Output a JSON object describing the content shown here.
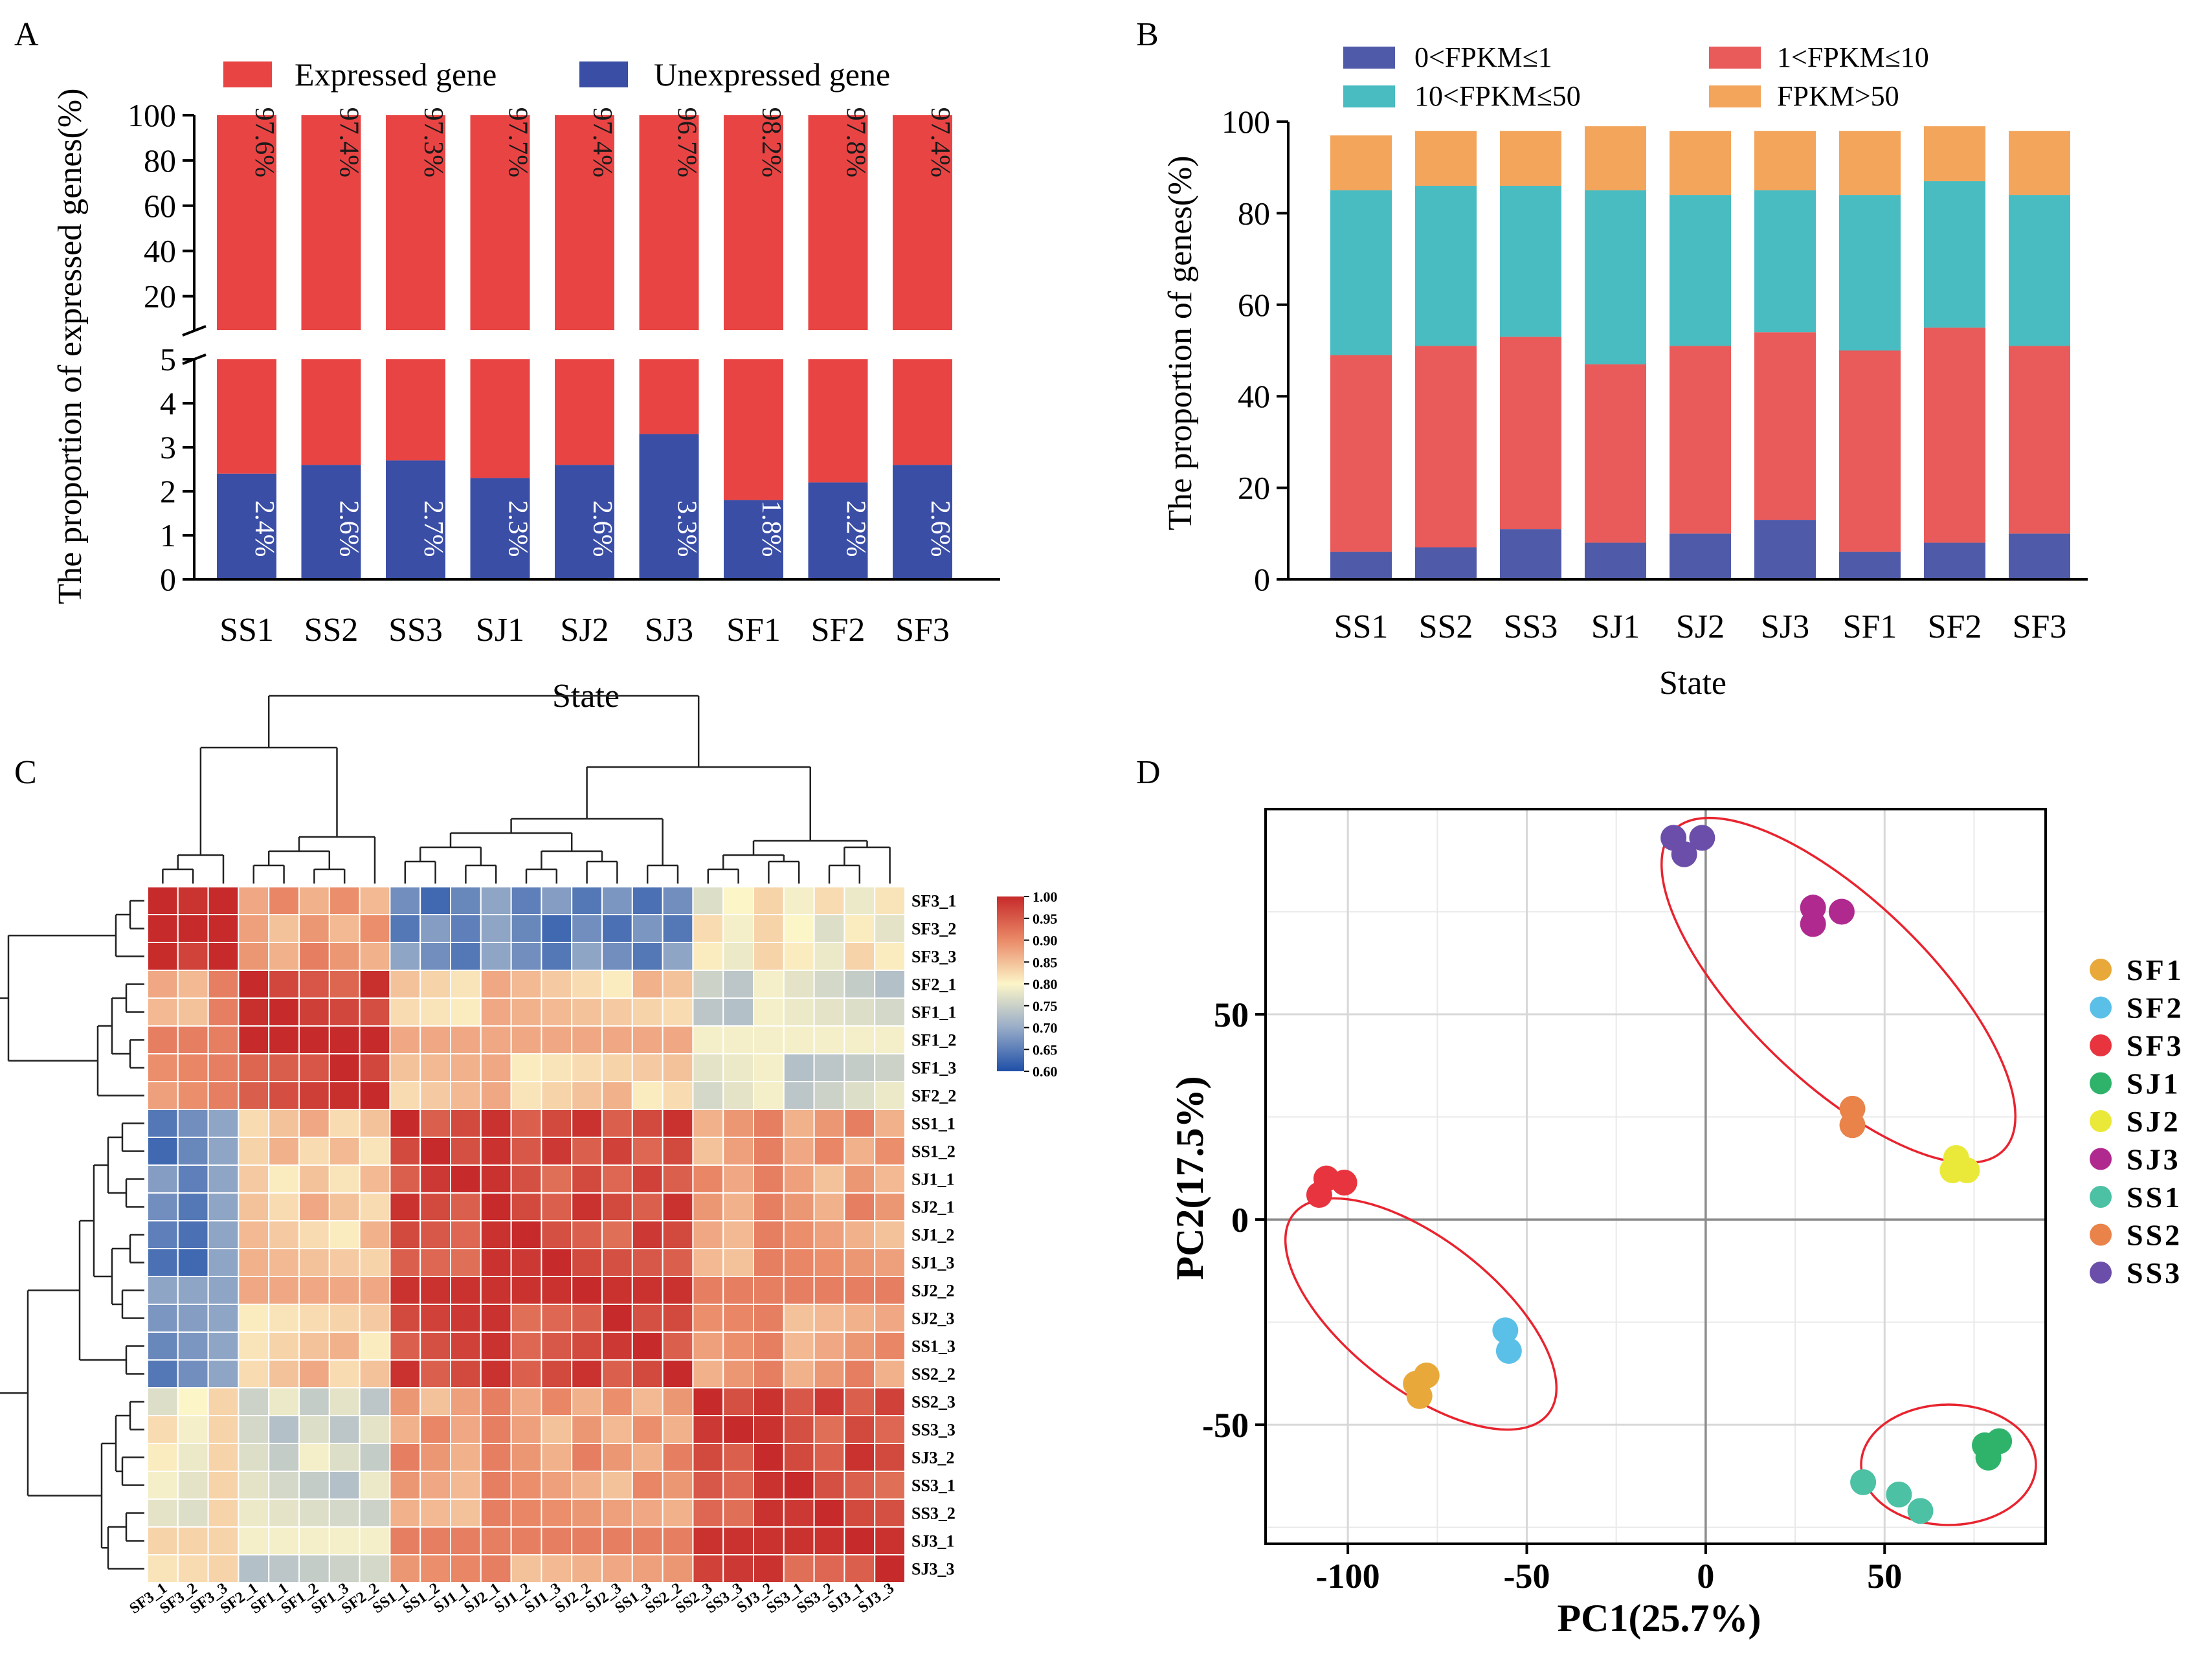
{
  "panel_labels": {
    "a": "A",
    "b": "B",
    "c": "C",
    "d": "D"
  },
  "chart_data": [
    {
      "panel": "A",
      "type": "bar",
      "stacked": true,
      "broken_axis": true,
      "categories": [
        "SS1",
        "SS2",
        "SS3",
        "SJ1",
        "SJ2",
        "SJ3",
        "SF1",
        "SF2",
        "SF3"
      ],
      "series": [
        {
          "name": "Expressed gene",
          "values": [
            97.6,
            97.4,
            97.3,
            97.7,
            97.4,
            96.7,
            98.2,
            97.8,
            97.4
          ],
          "color": "#e84444"
        },
        {
          "name": "Unexpressed gene",
          "values": [
            2.4,
            2.6,
            2.7,
            2.3,
            2.6,
            3.3,
            1.8,
            2.2,
            2.6
          ],
          "color": "#3a4ea6"
        }
      ],
      "expressed_labels": [
        "97.6%",
        "97.4%",
        "97.3%",
        "97.7%",
        "97.4%",
        "96.7%",
        "98.2%",
        "97.8%",
        "97.4%"
      ],
      "unexpressed_labels": [
        "2.4%",
        "2.6%",
        "2.7%",
        "2.3%",
        "2.6%",
        "3.3%",
        "1.8%",
        "2.2%",
        "2.6%"
      ],
      "xlabel": "State",
      "ylabel": "The proportion of expressed genes(%)",
      "upper_ylim": [
        5,
        100
      ],
      "upper_ticks": [
        "20",
        "40",
        "60",
        "80",
        "100"
      ],
      "lower_ylim": [
        0,
        5
      ],
      "lower_ticks": [
        "0",
        "1",
        "2",
        "3",
        "4",
        "5"
      ],
      "legend": [
        "Expressed gene",
        "Unexpressed gene"
      ]
    },
    {
      "panel": "B",
      "type": "bar",
      "stacked": true,
      "categories": [
        "SS1",
        "SS2",
        "SS3",
        "SJ1",
        "SJ2",
        "SJ3",
        "SF1",
        "SF2",
        "SF3"
      ],
      "series": [
        {
          "name": "0<FPKM≤1",
          "values": [
            6,
            7,
            11,
            8,
            10,
            13,
            6,
            8,
            10
          ],
          "color": "#4f5ba8"
        },
        {
          "name": "1<FPKM≤10",
          "values": [
            43,
            44,
            42,
            39,
            41,
            41,
            44,
            47,
            41
          ],
          "color": "#e95a5a"
        },
        {
          "name": "10<FPKM≤50",
          "values": [
            36,
            35,
            33,
            38,
            33,
            31,
            34,
            32,
            33
          ],
          "color": "#48bcc1"
        },
        {
          "name": "FPKM>50",
          "values": [
            12,
            12,
            12,
            14,
            14,
            13,
            14,
            12,
            14
          ],
          "color": "#f3a55c"
        }
      ],
      "xlabel": "State",
      "ylabel": "The proportion of  genes(%)",
      "ylim": [
        0,
        100
      ],
      "yticks": [
        "0",
        "20",
        "40",
        "60",
        "80",
        "100"
      ],
      "legend": [
        "0<FPKM≤1",
        "1<FPKM≤10",
        "10<FPKM≤50",
        "FPKM>50"
      ]
    },
    {
      "panel": "C",
      "type": "heatmap",
      "samples": [
        "SF3_1",
        "SF3_2",
        "SF3_3",
        "SF2_1",
        "SF1_1",
        "SF1_2",
        "SF1_3",
        "SF2_2",
        "SS1_1",
        "SS1_2",
        "SJ1_1",
        "SJ2_1",
        "SJ1_2",
        "SJ1_3",
        "SJ2_2",
        "SJ2_3",
        "SS1_3",
        "SS2_2",
        "SS2_3",
        "SS3_3",
        "SJ3_2",
        "SS3_1",
        "SS3_2",
        "SJ3_1",
        "SJ3_3"
      ],
      "groups": [
        0,
        0,
        0,
        1,
        1,
        1,
        1,
        1,
        2,
        2,
        2,
        2,
        2,
        2,
        2,
        2,
        2,
        2,
        3,
        3,
        3,
        3,
        3,
        3,
        3
      ],
      "group_similarity": [
        [
          0.99,
          0.88,
          0.66,
          0.8
        ],
        [
          0.88,
          0.97,
          0.84,
          0.76
        ],
        [
          0.66,
          0.84,
          0.96,
          0.88
        ],
        [
          0.8,
          0.76,
          0.88,
          0.96
        ]
      ],
      "colorbar_ticks": [
        "1.00",
        "0.95",
        "0.90",
        "0.85",
        "0.80",
        "0.75",
        "0.70",
        "0.65",
        "0.60"
      ],
      "color_range": [
        0.6,
        1.0
      ]
    },
    {
      "panel": "D",
      "type": "scatter",
      "xlabel": "PC1(25.7%)",
      "ylabel": "PC2(17.5%)",
      "xlim": [
        -123,
        95
      ],
      "ylim": [
        -79,
        100
      ],
      "xticks": [
        -100,
        -50,
        0,
        50
      ],
      "xtick_labels": [
        "-100",
        "-50",
        "0",
        "50"
      ],
      "yticks": [
        -50,
        0,
        50
      ],
      "ytick_labels": [
        "-50",
        "0",
        "50"
      ],
      "groups": [
        {
          "name": "SF1",
          "color": "#e8a93a",
          "points": [
            [
              -81,
              -40
            ],
            [
              -78,
              -38
            ],
            [
              -80,
              -43
            ]
          ]
        },
        {
          "name": "SF2",
          "color": "#5bc0e8",
          "points": [
            [
              -56,
              -27
            ],
            [
              -55,
              -32
            ]
          ]
        },
        {
          "name": "SF3",
          "color": "#e8343f",
          "points": [
            [
              -106,
              10
            ],
            [
              -101,
              9
            ],
            [
              -108,
              6
            ]
          ]
        },
        {
          "name": "SJ1",
          "color": "#2fb36b",
          "points": [
            [
              78,
              -55
            ],
            [
              82,
              -54
            ],
            [
              79,
              -58
            ]
          ]
        },
        {
          "name": "SJ2",
          "color": "#eae93a",
          "points": [
            [
              70,
              15
            ],
            [
              73,
              12
            ],
            [
              69,
              12
            ]
          ]
        },
        {
          "name": "SJ3",
          "color": "#b0298f",
          "points": [
            [
              30,
              76
            ],
            [
              38,
              75
            ],
            [
              30,
              72
            ]
          ]
        },
        {
          "name": "SS1",
          "color": "#4cc1a4",
          "points": [
            [
              44,
              -64
            ],
            [
              54,
              -67
            ],
            [
              60,
              -71
            ]
          ]
        },
        {
          "name": "SS2",
          "color": "#e9834a",
          "points": [
            [
              41,
              27
            ],
            [
              41,
              23
            ]
          ]
        },
        {
          "name": "SS3",
          "color": "#6b4ea9",
          "points": [
            [
              -9,
              93
            ],
            [
              -1,
              93
            ],
            [
              -6,
              89
            ]
          ]
        }
      ],
      "legend": [
        "SF1",
        "SF2",
        "SF3",
        "SJ1",
        "SJ2",
        "SJ3",
        "SS1",
        "SS2",
        "SS3"
      ]
    }
  ]
}
